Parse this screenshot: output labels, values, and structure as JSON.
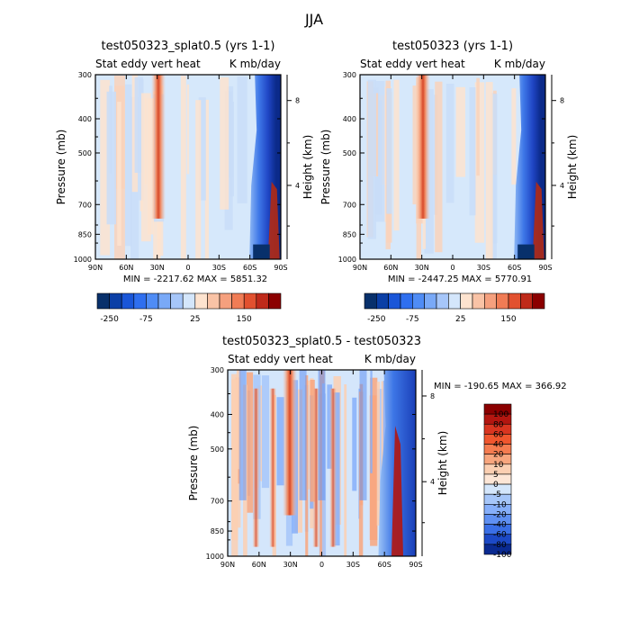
{
  "figure": {
    "title": "JJA"
  },
  "colors": {
    "blue_dark": "#08306b",
    "blue_mid": "#2b6ef2",
    "blue_light": "#d6e8fb",
    "orange_light": "#fde3cf",
    "orange_mid": "#f47a4e",
    "red_dark": "#8b0000"
  },
  "chart_data": [
    {
      "type": "heatmap",
      "title": "test050323_splat0.5 (yrs 1-1)",
      "left_label": "Stat eddy vert heat",
      "right_label": "K mb/day",
      "ylabel": "Pressure (mb)",
      "y2label": "Height (km)",
      "x_ticks": [
        "90N",
        "60N",
        "30N",
        "0",
        "30S",
        "60S",
        "90S"
      ],
      "y_ticks": [
        "300",
        "400",
        "500",
        "700",
        "850",
        "1000"
      ],
      "y2_ticks": [
        "8",
        "4"
      ],
      "minmax_text": "MIN = -2217.62   MAX = 5851.32",
      "colorbar_levels": [
        -250,
        -200,
        -150,
        -100,
        -75,
        -50,
        -25,
        0,
        25,
        50,
        75,
        100,
        150,
        200,
        250
      ],
      "colorbar_labels": [
        "-250",
        "-75",
        "25",
        "150"
      ],
      "ylim": [
        1000,
        300
      ],
      "xlim": [
        "90N",
        "90S"
      ]
    },
    {
      "type": "heatmap",
      "title": "test050323 (yrs 1-1)",
      "left_label": "Stat eddy vert heat",
      "right_label": "K mb/day",
      "ylabel": "Pressure (mb)",
      "y2label": "Height (km)",
      "x_ticks": [
        "90N",
        "60N",
        "30N",
        "0",
        "30S",
        "60S",
        "90S"
      ],
      "y_ticks": [
        "300",
        "400",
        "500",
        "700",
        "850",
        "1000"
      ],
      "y2_ticks": [
        "8",
        "4"
      ],
      "minmax_text": "MIN = -2447.25   MAX = 5770.91",
      "colorbar_levels": [
        -250,
        -200,
        -150,
        -100,
        -75,
        -50,
        -25,
        0,
        25,
        50,
        75,
        100,
        150,
        200,
        250
      ],
      "colorbar_labels": [
        "-250",
        "-75",
        "25",
        "150"
      ],
      "ylim": [
        1000,
        300
      ],
      "xlim": [
        "90N",
        "90S"
      ]
    },
    {
      "type": "heatmap",
      "title": "test050323_splat0.5 - test050323",
      "left_label": "Stat eddy vert heat",
      "right_label": "K mb/day",
      "ylabel": "Pressure (mb)",
      "y2label": "Height (km)",
      "x_ticks": [
        "90N",
        "60N",
        "30N",
        "0",
        "30S",
        "60S",
        "90S"
      ],
      "y_ticks": [
        "300",
        "400",
        "500",
        "700",
        "850",
        "1000"
      ],
      "y2_ticks": [
        "8",
        "4"
      ],
      "minmax_text": "MIN = -190.65   MAX = 366.92",
      "colorbar_levels": [
        100,
        80,
        60,
        40,
        20,
        10,
        5,
        0,
        -5,
        -10,
        -20,
        -40,
        -60,
        -80,
        -100
      ],
      "colorbar_labels": [
        "100",
        "80",
        "60",
        "40",
        "20",
        "10",
        "5",
        "0",
        "-5",
        "-10",
        "-20",
        "-40",
        "-60",
        "-80",
        "-100"
      ],
      "ylim": [
        1000,
        300
      ],
      "xlim": [
        "90N",
        "90S"
      ]
    }
  ]
}
